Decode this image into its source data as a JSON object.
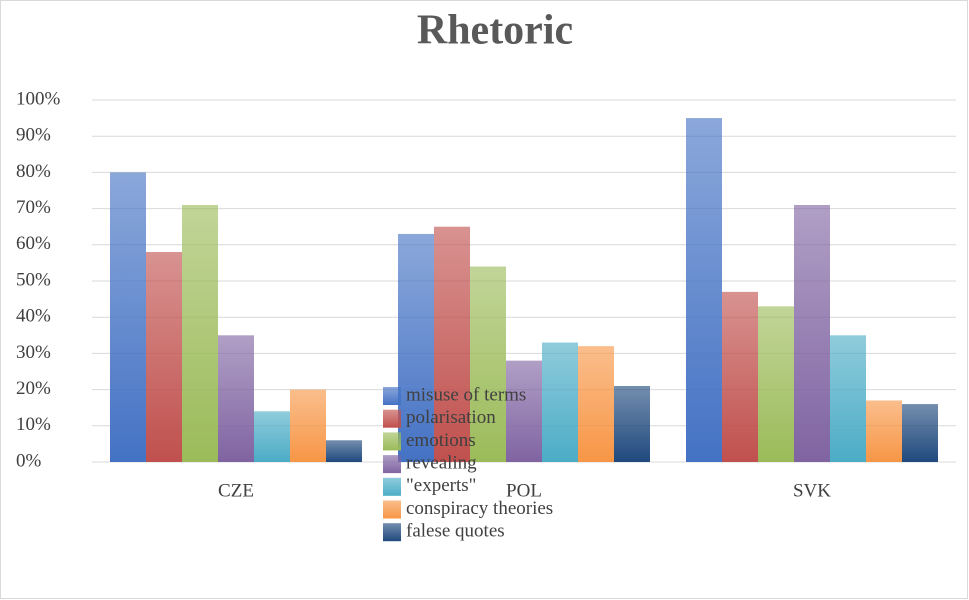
{
  "chart_data": {
    "type": "bar",
    "title": "Rhetoric",
    "categories": [
      "CZE",
      "POL",
      "SVK"
    ],
    "series": [
      {
        "name": "misuse of terms",
        "color": "#4472c4",
        "values": [
          80,
          63,
          95
        ]
      },
      {
        "name": "polarisation",
        "color": "#c0504d",
        "values": [
          58,
          65,
          47
        ]
      },
      {
        "name": "emotions",
        "color": "#9bbb59",
        "values": [
          71,
          54,
          43
        ]
      },
      {
        "name": "revealing",
        "color": "#8064a2",
        "values": [
          35,
          28,
          71
        ]
      },
      {
        "name": "\"experts\"",
        "color": "#4bacc6",
        "values": [
          14,
          33,
          35
        ]
      },
      {
        "name": "conspiracy theories",
        "color": "#f79646",
        "values": [
          20,
          32,
          17
        ]
      },
      {
        "name": "falese quotes",
        "color": "#1f497d",
        "values": [
          6,
          21,
          16
        ]
      }
    ],
    "ylim": [
      0,
      100
    ],
    "yticks": [
      {
        "value": 0,
        "label": "0%"
      },
      {
        "value": 10,
        "label": "10%"
      },
      {
        "value": 20,
        "label": "20%"
      },
      {
        "value": 30,
        "label": "30%"
      },
      {
        "value": 40,
        "label": "40%"
      },
      {
        "value": 50,
        "label": "50%"
      },
      {
        "value": 60,
        "label": "60%"
      },
      {
        "value": 70,
        "label": "70%"
      },
      {
        "value": 80,
        "label": "80%"
      },
      {
        "value": 90,
        "label": "90%"
      },
      {
        "value": 100,
        "label": "100%"
      }
    ],
    "grid": true
  }
}
